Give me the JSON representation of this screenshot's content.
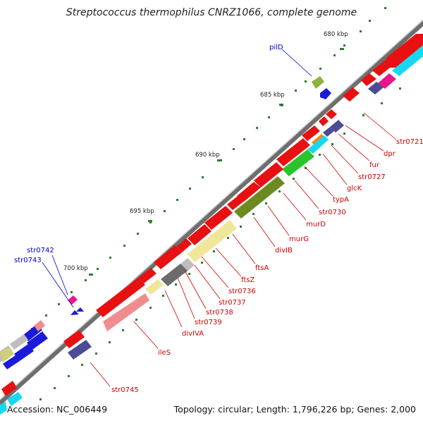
{
  "title": "Streptococcus thermophilus CNRZ1066, complete genome",
  "accession": "Accession: NC_006449",
  "meta": "Topology: circular; Length: 1,796,226 bp; Genes: 2,000",
  "kbp_labels": [
    "680 kbp",
    "685 kbp",
    "690 kbp",
    "695 kbp",
    "700 kbp"
  ],
  "genes_red": [
    "str0721",
    "dpr",
    "fur",
    "str0727",
    "glcK",
    "typA",
    "str0730",
    "murD",
    "murG",
    "divIB",
    "ftsA",
    "ftsZ",
    "str0736",
    "str0737",
    "str0738",
    "str0739",
    "divIVA",
    "ileS",
    "str0745"
  ],
  "genes_blue": [
    "pilD",
    "str0742",
    "str0743"
  ]
}
